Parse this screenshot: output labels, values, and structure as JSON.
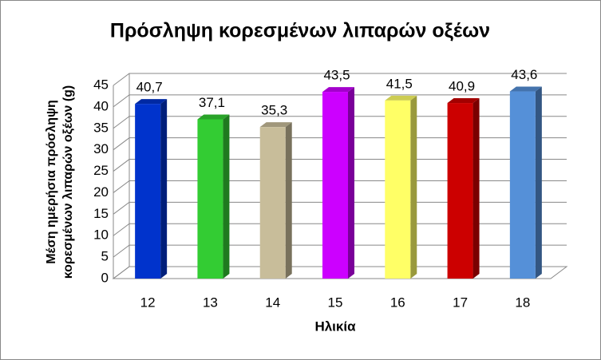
{
  "chart_data": {
    "type": "bar3d",
    "title": "Πρόσληψη κορεσμένων λιπαρών οξέων",
    "ylabel": [
      "Μέση ημερήσια πρόσληψη",
      "κορεσμένων λιπαρών οξέων (g)"
    ],
    "xlabel": "Ηλικία",
    "categories": [
      "12",
      "13",
      "14",
      "15",
      "16",
      "17",
      "18"
    ],
    "values": [
      40.7,
      37.1,
      35.3,
      43.5,
      41.5,
      40.9,
      43.6
    ],
    "value_labels": [
      "40,7",
      "37,1",
      "35,3",
      "43,5",
      "41,5",
      "40,9",
      "43,6"
    ],
    "colors": [
      "#0033cc",
      "#33cc33",
      "#c8bd9a",
      "#cc00ff",
      "#ffff66",
      "#cc0000",
      "#5590d8"
    ],
    "ylim": [
      0,
      45
    ],
    "yticks": [
      0,
      5,
      10,
      15,
      20,
      25,
      30,
      35,
      40,
      45
    ],
    "grid": true
  }
}
